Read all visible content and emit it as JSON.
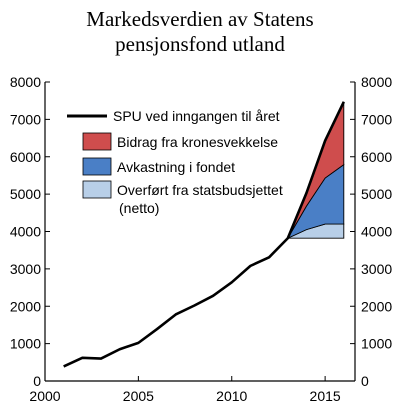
{
  "chart_data": {
    "type": "area",
    "title": [
      "Markedsverdien av Statens",
      "pensjonsfond utland"
    ],
    "xlabel": "",
    "ylabel": "",
    "xlim": [
      2000,
      2016.6
    ],
    "ylim": [
      0,
      8000
    ],
    "x_ticks": [
      2000,
      2005,
      2010,
      2015
    ],
    "y_ticks": [
      0,
      1000,
      2000,
      3000,
      4000,
      5000,
      6000,
      7000,
      8000
    ],
    "y_axis_both_sides": true,
    "grid": false,
    "legend_position": "top-left",
    "series": [
      {
        "name": "SPU ved inngangen til året",
        "type": "line",
        "color": "#000000",
        "x": [
          2001,
          2002,
          2003,
          2004,
          2005,
          2006,
          2007,
          2008,
          2009,
          2010,
          2011,
          2012,
          2013,
          2014,
          2015,
          2016
        ],
        "values": [
          390,
          620,
          600,
          850,
          1020,
          1390,
          1780,
          2020,
          2280,
          2640,
          3080,
          3310,
          3820,
          5030,
          6430,
          7470
        ]
      },
      {
        "name": "Overført fra statsbudsjettet (netto)",
        "type": "stacked-area",
        "color": "#b8cfe8",
        "x": [
          2013,
          2014,
          2015,
          2016
        ],
        "values": [
          0,
          230,
          380,
          380
        ]
      },
      {
        "name": "Avkastning i fondet",
        "type": "stacked-area",
        "color": "#4a7fc6",
        "x": [
          2013,
          2014,
          2015,
          2016
        ],
        "values": [
          0,
          630,
          1230,
          1590
        ]
      },
      {
        "name": "Bidrag fra kronesvekkelse",
        "type": "stacked-area",
        "color": "#cf4d4d",
        "x": [
          2013,
          2014,
          2015,
          2016
        ],
        "values": [
          0,
          350,
          1000,
          1680
        ]
      }
    ],
    "area_base": 3820,
    "legend": [
      {
        "label": "SPU ved inngangen til året",
        "kind": "line",
        "color": "#000000"
      },
      {
        "label": "Bidrag fra kronesvekkelse",
        "kind": "box",
        "color": "#cf4d4d"
      },
      {
        "label": "Avkastning i fondet",
        "kind": "box",
        "color": "#4a7fc6"
      },
      {
        "label": "Overført fra statsbudsjettet",
        "label_line2": "(netto)",
        "kind": "box",
        "color": "#b8cfe8"
      }
    ]
  }
}
